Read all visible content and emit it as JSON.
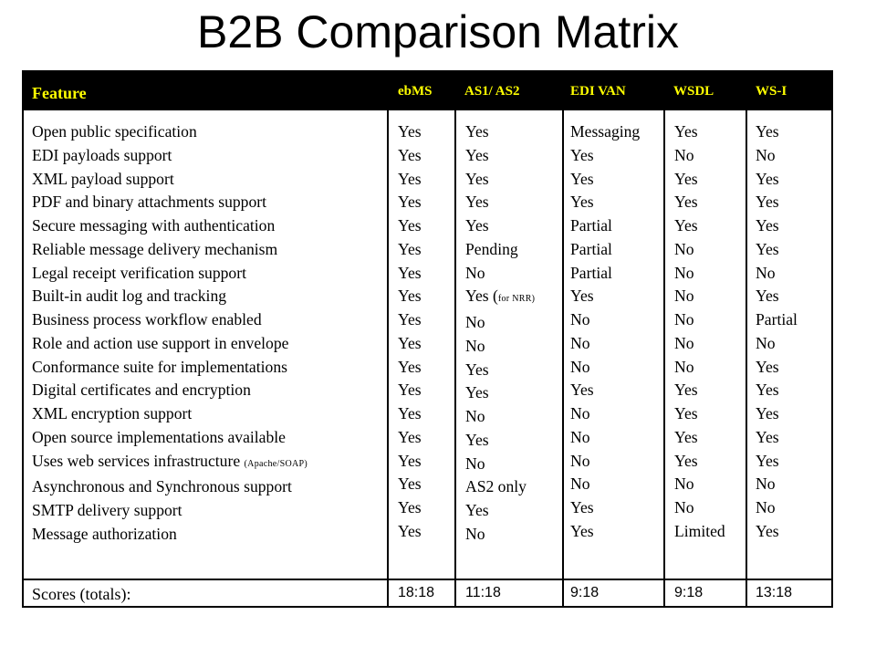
{
  "title": "B2B Comparison Matrix",
  "columns": [
    "Feature",
    "ebMS",
    "AS1/ AS2",
    "EDI VAN",
    "WSDL",
    "WS-I"
  ],
  "rows": [
    [
      "Open public specification",
      "Yes",
      "Yes",
      "Messaging",
      "Yes",
      "Yes"
    ],
    [
      "EDI payloads support",
      "Yes",
      "Yes",
      "Yes",
      "No",
      "No"
    ],
    [
      "XML payload support",
      "Yes",
      "Yes",
      "Yes",
      "Yes",
      "Yes"
    ],
    [
      "PDF and binary attachments support",
      "Yes",
      "Yes",
      "Yes",
      "Yes",
      "Yes"
    ],
    [
      "Secure messaging with authentication",
      "Yes",
      "Yes",
      "Partial",
      "Yes",
      "Yes"
    ],
    [
      "Reliable message delivery mechanism",
      "Yes",
      "Pending",
      "Partial",
      "No",
      "Yes"
    ],
    [
      "Legal receipt verification support",
      "Yes",
      "No",
      "Partial",
      "No",
      "No"
    ],
    [
      "Built-in audit log and tracking",
      "Yes",
      "Yes (",
      "Yes",
      "No",
      "Yes"
    ],
    [
      "Business process workflow enabled",
      "Yes",
      "No",
      "No",
      "No",
      "Partial"
    ],
    [
      "Role and action use support in envelope",
      "Yes",
      "No",
      "No",
      "No",
      "No"
    ],
    [
      "Conformance suite for implementations",
      "Yes",
      "Yes",
      "No",
      "No",
      "Yes"
    ],
    [
      "Digital certificates and encryption",
      "Yes",
      "Yes",
      "Yes",
      "Yes",
      "Yes"
    ],
    [
      "XML encryption support",
      "Yes",
      "No",
      "No",
      "Yes",
      "Yes"
    ],
    [
      "Open source implementations available",
      "Yes",
      "Yes",
      "No",
      "Yes",
      "Yes"
    ],
    [
      "Uses web services infrastructure ",
      "Yes",
      "No",
      "No",
      "Yes",
      "Yes"
    ],
    [
      "Asynchronous and Synchronous support",
      "Yes",
      "AS2 only",
      "No",
      "No",
      "No"
    ],
    [
      "SMTP delivery support",
      "Yes",
      "Yes",
      "Yes",
      "No",
      "No"
    ],
    [
      "Message authorization",
      "Yes",
      "No",
      "Yes",
      "Limited",
      "Yes"
    ]
  ],
  "notes": {
    "nrr": "for NRR)",
    "apache": "(Apache/SOAP)"
  },
  "scores_label": "Scores (totals):",
  "scores": [
    "18:18",
    "11:18",
    "9:18",
    "9:18",
    "13:18"
  ],
  "colors": {
    "header_bg": "#000000",
    "header_text": "#ffff00",
    "grid": "#000000"
  }
}
